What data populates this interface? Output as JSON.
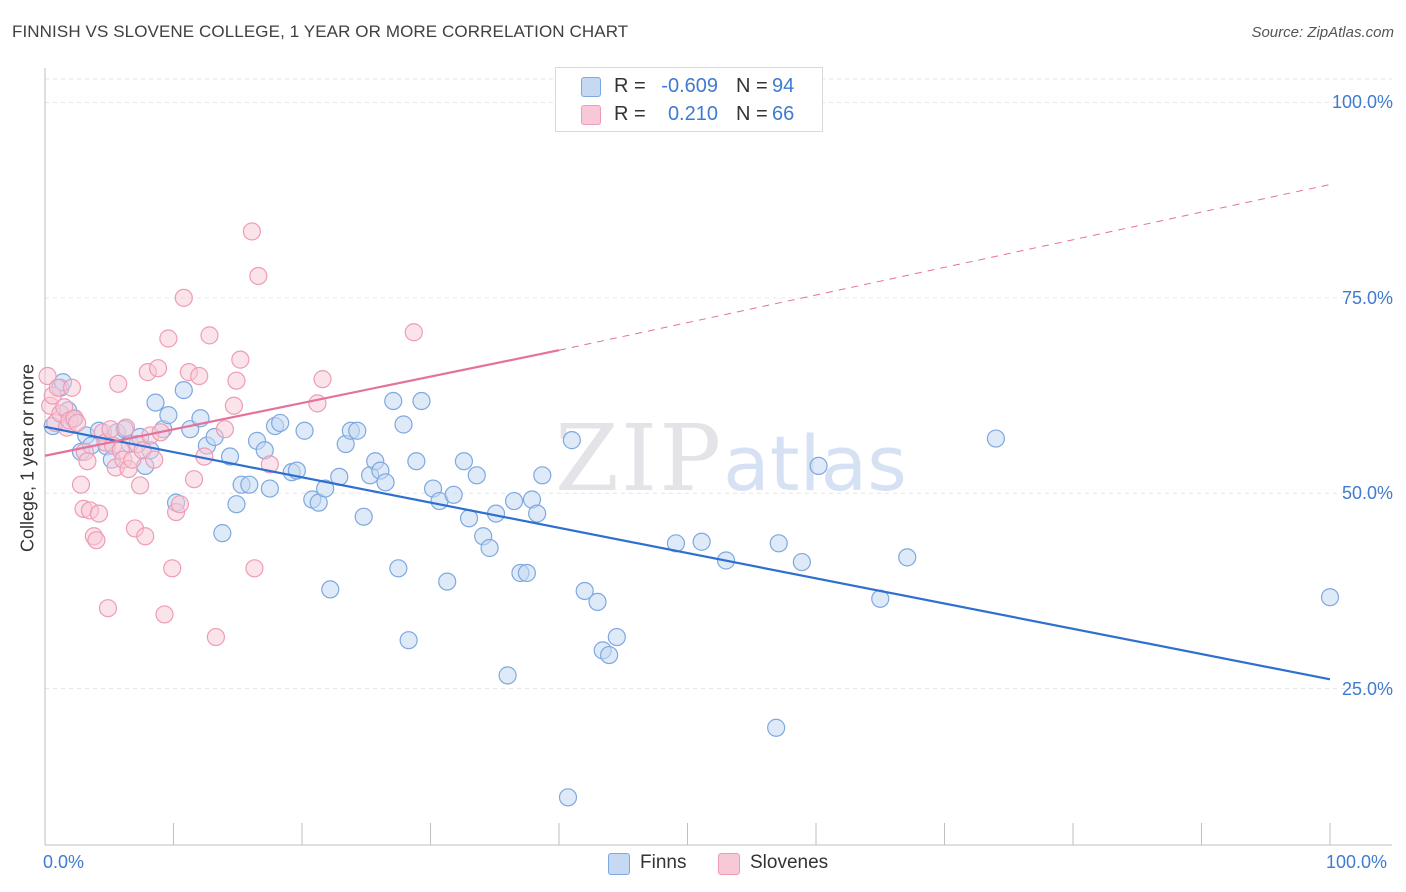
{
  "title": "FINNISH VS SLOVENE COLLEGE, 1 YEAR OR MORE CORRELATION CHART",
  "source": "Source: ZipAtlas.com",
  "watermark": {
    "zip": "ZIP",
    "atlas": "atlas"
  },
  "legend": {
    "r_label": "R =",
    "n_label": "N =",
    "rows": [
      {
        "series": "Finns",
        "r": "-0.609",
        "n": "94"
      },
      {
        "series": "Slovenes",
        "r": "0.210",
        "n": "66"
      }
    ]
  },
  "bottom_legend": [
    "Finns",
    "Slovenes"
  ],
  "colors": {
    "finns_fill": "#c5d9f3",
    "finns_stroke": "#7ea8e0",
    "finns_line": "#2f6fd0",
    "slovenes_fill": "#f7c8d6",
    "slovenes_stroke": "#ee9cb5",
    "slovenes_line": "#e4729a",
    "axis_text": "#3f7bd0"
  },
  "chart_data": {
    "type": "scatter",
    "title": "FINNISH VS SLOVENE COLLEGE, 1 YEAR OR MORE CORRELATION CHART",
    "xlabel": "",
    "ylabel": "College, 1 year or more",
    "xlim": [
      0,
      100
    ],
    "ylim": [
      5,
      103
    ],
    "x_tick_labels": [
      "0.0%",
      "100.0%"
    ],
    "y_ticks": [
      25,
      50,
      75,
      100
    ],
    "y_tick_labels": [
      "25.0%",
      "50.0%",
      "75.0%",
      "100.0%"
    ],
    "grid": true,
    "series": [
      {
        "name": "Finns",
        "r": -0.609,
        "n": 94,
        "trend": {
          "x": [
            0,
            100
          ],
          "y": [
            58.5,
            26.2
          ],
          "style": "solid"
        },
        "points": [
          [
            0.6,
            58.6
          ],
          [
            1.2,
            63.5
          ],
          [
            1.4,
            64.2
          ],
          [
            1.8,
            60.6
          ],
          [
            2.2,
            59.5
          ],
          [
            2.8,
            55.3
          ],
          [
            3.2,
            57.4
          ],
          [
            3.6,
            56.1
          ],
          [
            4.2,
            58.0
          ],
          [
            4.8,
            56.0
          ],
          [
            5.2,
            54.3
          ],
          [
            5.6,
            57.8
          ],
          [
            6.2,
            58.2
          ],
          [
            6.6,
            56.3
          ],
          [
            7.4,
            57.2
          ],
          [
            7.8,
            53.5
          ],
          [
            8.2,
            55.5
          ],
          [
            8.6,
            61.6
          ],
          [
            9.2,
            58.2
          ],
          [
            9.6,
            60.0
          ],
          [
            10.2,
            48.8
          ],
          [
            10.8,
            63.2
          ],
          [
            11.3,
            58.2
          ],
          [
            12.1,
            59.6
          ],
          [
            12.6,
            56.1
          ],
          [
            13.2,
            57.2
          ],
          [
            13.8,
            44.9
          ],
          [
            14.4,
            54.7
          ],
          [
            14.9,
            48.6
          ],
          [
            15.3,
            51.1
          ],
          [
            15.9,
            51.1
          ],
          [
            16.5,
            56.7
          ],
          [
            17.1,
            55.5
          ],
          [
            17.5,
            50.6
          ],
          [
            17.9,
            58.6
          ],
          [
            18.3,
            59.0
          ],
          [
            19.2,
            52.7
          ],
          [
            19.6,
            52.9
          ],
          [
            20.2,
            58.0
          ],
          [
            20.8,
            49.2
          ],
          [
            21.3,
            48.8
          ],
          [
            21.8,
            50.6
          ],
          [
            22.2,
            37.7
          ],
          [
            22.9,
            52.1
          ],
          [
            23.4,
            56.3
          ],
          [
            23.8,
            58.0
          ],
          [
            24.3,
            58.0
          ],
          [
            24.8,
            47.0
          ],
          [
            25.3,
            52.3
          ],
          [
            25.7,
            54.1
          ],
          [
            26.1,
            52.9
          ],
          [
            26.5,
            51.4
          ],
          [
            27.1,
            61.8
          ],
          [
            27.5,
            40.4
          ],
          [
            27.9,
            58.8
          ],
          [
            28.3,
            31.2
          ],
          [
            28.9,
            54.1
          ],
          [
            29.3,
            61.8
          ],
          [
            30.2,
            50.6
          ],
          [
            30.7,
            49.0
          ],
          [
            31.3,
            38.7
          ],
          [
            31.8,
            49.8
          ],
          [
            32.6,
            54.1
          ],
          [
            33.0,
            46.8
          ],
          [
            33.6,
            52.3
          ],
          [
            34.1,
            44.5
          ],
          [
            34.6,
            43.0
          ],
          [
            35.1,
            47.4
          ],
          [
            36.0,
            26.7
          ],
          [
            36.5,
            49.0
          ],
          [
            37.0,
            39.8
          ],
          [
            37.5,
            39.8
          ],
          [
            37.9,
            49.2
          ],
          [
            38.3,
            47.4
          ],
          [
            38.7,
            52.3
          ],
          [
            40.7,
            11.1
          ],
          [
            41.0,
            56.8
          ],
          [
            42.0,
            37.5
          ],
          [
            43.0,
            36.1
          ],
          [
            43.4,
            29.9
          ],
          [
            43.9,
            29.3
          ],
          [
            44.5,
            31.6
          ],
          [
            49.1,
            43.6
          ],
          [
            51.1,
            43.8
          ],
          [
            53.0,
            41.4
          ],
          [
            56.9,
            20.0
          ],
          [
            57.1,
            43.6
          ],
          [
            58.9,
            41.2
          ],
          [
            60.2,
            53.5
          ],
          [
            65.0,
            36.5
          ],
          [
            67.1,
            41.8
          ],
          [
            74.0,
            57.0
          ],
          [
            100.0,
            36.7
          ]
        ]
      },
      {
        "name": "Slovenes",
        "r": 0.21,
        "n": 66,
        "trend": {
          "x": [
            0,
            40
          ],
          "y": [
            54.8,
            68.3
          ],
          "style": "solid",
          "extension": {
            "x": [
              40,
              100
            ],
            "y": [
              68.3,
              89.5
            ],
            "style": "dashed"
          }
        },
        "points": [
          [
            0.2,
            65.0
          ],
          [
            0.4,
            61.2
          ],
          [
            0.6,
            62.5
          ],
          [
            0.8,
            59.0
          ],
          [
            1.0,
            63.5
          ],
          [
            1.2,
            60.2
          ],
          [
            1.5,
            61.0
          ],
          [
            1.7,
            58.4
          ],
          [
            1.9,
            59.3
          ],
          [
            2.1,
            63.5
          ],
          [
            2.3,
            59.6
          ],
          [
            2.5,
            59.0
          ],
          [
            2.8,
            51.1
          ],
          [
            3.0,
            48.0
          ],
          [
            3.1,
            55.3
          ],
          [
            3.3,
            54.1
          ],
          [
            3.5,
            47.8
          ],
          [
            3.8,
            44.5
          ],
          [
            4.0,
            44.0
          ],
          [
            4.2,
            47.4
          ],
          [
            4.5,
            57.8
          ],
          [
            4.7,
            56.5
          ],
          [
            4.9,
            35.3
          ],
          [
            5.1,
            58.2
          ],
          [
            5.3,
            56.1
          ],
          [
            5.5,
            53.3
          ],
          [
            5.7,
            64.0
          ],
          [
            5.9,
            55.5
          ],
          [
            6.1,
            54.3
          ],
          [
            6.3,
            58.4
          ],
          [
            6.5,
            53.1
          ],
          [
            6.8,
            54.3
          ],
          [
            7.0,
            45.5
          ],
          [
            7.2,
            56.3
          ],
          [
            7.4,
            51.0
          ],
          [
            7.6,
            55.5
          ],
          [
            7.8,
            44.5
          ],
          [
            8.0,
            65.5
          ],
          [
            8.2,
            57.4
          ],
          [
            8.5,
            54.3
          ],
          [
            8.8,
            66.0
          ],
          [
            9.0,
            57.8
          ],
          [
            9.3,
            34.5
          ],
          [
            9.6,
            69.8
          ],
          [
            9.9,
            40.4
          ],
          [
            10.2,
            47.6
          ],
          [
            10.5,
            48.6
          ],
          [
            10.8,
            75.0
          ],
          [
            11.2,
            65.5
          ],
          [
            11.6,
            51.8
          ],
          [
            12.0,
            65.0
          ],
          [
            12.4,
            54.7
          ],
          [
            12.8,
            70.2
          ],
          [
            13.3,
            31.6
          ],
          [
            14.0,
            58.2
          ],
          [
            14.7,
            61.2
          ],
          [
            14.9,
            64.4
          ],
          [
            15.2,
            67.1
          ],
          [
            16.1,
            83.5
          ],
          [
            16.3,
            40.4
          ],
          [
            16.6,
            77.8
          ],
          [
            17.5,
            53.7
          ],
          [
            21.2,
            61.5
          ],
          [
            21.6,
            64.6
          ],
          [
            28.7,
            70.6
          ]
        ]
      }
    ]
  }
}
